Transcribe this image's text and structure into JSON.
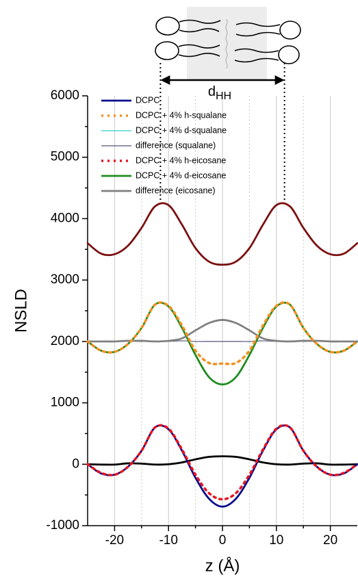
{
  "chart_data": {
    "type": "line",
    "x_label": "z (Å)",
    "y_label": "NSLD",
    "annotation": {
      "text": "d",
      "subscript": "HH",
      "x": [
        -11.5,
        11.5
      ]
    },
    "x": [
      -25,
      -22.5,
      -20,
      -17.5,
      -15,
      -12.5,
      -10,
      -7.5,
      -5,
      -2.5,
      0,
      2.5,
      5,
      7.5,
      10,
      12.5,
      15,
      17.5,
      20,
      22.5,
      25
    ],
    "series": [
      {
        "color": "#7b1010",
        "style": "solid",
        "values": [
          3600,
          3430,
          3420,
          3560,
          3850,
          4200,
          4220,
          3900,
          3520,
          3300,
          3250,
          3300,
          3520,
          3900,
          4220,
          4200,
          3850,
          3560,
          3420,
          3430,
          3600
        ]
      },
      {
        "color": "#000000",
        "style": "solid",
        "values": [
          0,
          -5,
          -5,
          15,
          10,
          -5,
          0,
          30,
          80,
          120,
          130,
          120,
          80,
          30,
          0,
          -5,
          10,
          15,
          -5,
          -5,
          0
        ]
      },
      {
        "name": "DCPC",
        "color": "#0a0a8c",
        "style": "solid",
        "values": [
          0,
          -150,
          -170,
          -40,
          220,
          600,
          570,
          220,
          -220,
          -560,
          -690,
          -560,
          -220,
          220,
          570,
          600,
          220,
          -40,
          -170,
          -150,
          0
        ]
      },
      {
        "name": "DCPC + 4% h-squalane",
        "color": "#f39020",
        "style": "dotted",
        "values": [
          2000,
          1850,
          1830,
          1960,
          2220,
          2600,
          2580,
          2260,
          1850,
          1650,
          1640,
          1650,
          1850,
          2260,
          2580,
          2600,
          2220,
          1960,
          1830,
          1850,
          2000
        ]
      },
      {
        "name": "DCPC + 4% d-squalane",
        "color": "#33cccc",
        "style": "thin",
        "values": [
          2000,
          1850,
          1830,
          1960,
          2220,
          2600,
          2570,
          2220,
          1780,
          1420,
          1300,
          1420,
          1780,
          2220,
          2570,
          2600,
          2220,
          1960,
          1830,
          1850,
          2000
        ]
      },
      {
        "name": "difference (squalane)",
        "color": "#555577",
        "style": "thin",
        "values": [
          2000,
          2000,
          2005,
          2005,
          2000,
          2000,
          2000,
          2010,
          2000,
          2000,
          2000,
          2000,
          2000,
          2010,
          2000,
          2000,
          2000,
          2005,
          2005,
          2000,
          2000
        ]
      },
      {
        "name": "DCPC + 4% h-eicosane",
        "color": "#e8141e",
        "style": "dotted",
        "values": [
          0,
          -140,
          -170,
          -40,
          220,
          600,
          580,
          240,
          -170,
          -470,
          -570,
          -470,
          -170,
          240,
          580,
          600,
          220,
          -40,
          -170,
          -140,
          0
        ]
      },
      {
        "name": "DCPC + 4% d-eicosane",
        "color": "#1f8c1f",
        "style": "solid",
        "values": [
          2000,
          1850,
          1830,
          1960,
          2220,
          2600,
          2570,
          2220,
          1780,
          1420,
          1300,
          1420,
          1780,
          2220,
          2570,
          2600,
          2220,
          1960,
          1830,
          1850,
          2000
        ]
      },
      {
        "name": "difference (eicosane)",
        "color": "#808080",
        "style": "solid",
        "values": [
          2000,
          2000,
          2000,
          2010,
          2010,
          2000,
          2010,
          2050,
          2180,
          2300,
          2350,
          2300,
          2180,
          2050,
          2010,
          2000,
          2010,
          2010,
          2000,
          2000,
          2000
        ]
      }
    ],
    "xlim": [
      -25,
      25
    ],
    "xticks": [
      -20,
      -10,
      0,
      10,
      20
    ],
    "xminorticks": [
      -15,
      -5,
      5,
      15
    ],
    "ylim": [
      -1000,
      6000
    ],
    "yticks": [
      -1000,
      0,
      1000,
      2000,
      3000,
      4000,
      5000,
      6000
    ],
    "yminorticks": [
      -500,
      500,
      1500,
      2500,
      3500,
      4500,
      5500
    ],
    "grid": true,
    "legend": "upper left"
  }
}
